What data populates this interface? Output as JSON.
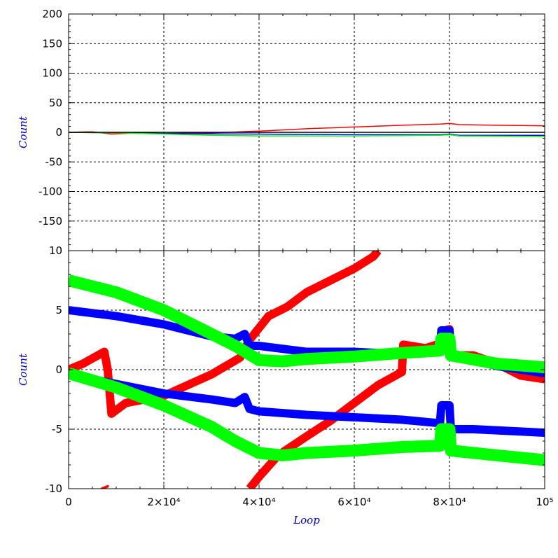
{
  "chart_data": [
    {
      "type": "line",
      "panel": "top",
      "ylabel": "Count",
      "xlabel": "",
      "xlim": [
        0,
        100000
      ],
      "ylim": [
        -200,
        200
      ],
      "y_ticks": [
        {
          "value": 200,
          "label": "200"
        },
        {
          "value": 150,
          "label": "150"
        },
        {
          "value": 100,
          "label": "100"
        },
        {
          "value": 50,
          "label": "50"
        },
        {
          "value": 0,
          "label": "0"
        },
        {
          "value": -50,
          "label": "-50"
        },
        {
          "value": -100,
          "label": "-100"
        },
        {
          "value": -150,
          "label": "-150"
        }
      ],
      "grid": true,
      "series": [
        {
          "color": "#ff0000",
          "x": [
            0,
            5000,
            9000,
            15000,
            20000,
            30000,
            40000,
            50000,
            60000,
            70000,
            78000,
            80000,
            82000,
            90000,
            100000
          ],
          "y": [
            0,
            1,
            -3,
            -1,
            -2,
            -1,
            2,
            6,
            9,
            12,
            14,
            15,
            13,
            12,
            11
          ]
        },
        {
          "color": "#0000ff",
          "x": [
            0,
            10000,
            20000,
            40000,
            60000,
            78000,
            80000,
            82000,
            100000
          ],
          "y": [
            0,
            -1,
            -2,
            -3,
            -4,
            -4,
            -3,
            -5,
            -5
          ]
        },
        {
          "color": "#00ff00",
          "x": [
            0,
            10000,
            20000,
            30000,
            40000,
            60000,
            78000,
            80000,
            82000,
            100000
          ],
          "y": [
            0,
            -1,
            -3,
            -5,
            -6,
            -6,
            -5,
            -4,
            -6,
            -7
          ]
        },
        {
          "color": "#000000",
          "x": [
            0,
            100000
          ],
          "y": [
            0,
            0
          ]
        }
      ]
    },
    {
      "type": "line",
      "panel": "bottom",
      "ylabel": "Count",
      "xlabel": "Loop",
      "xlim": [
        0,
        100000
      ],
      "ylim": [
        -10,
        10
      ],
      "x_ticks": [
        {
          "value": 0,
          "label": "0"
        },
        {
          "value": 20000,
          "label": "2×10⁴"
        },
        {
          "value": 40000,
          "label": "4×10⁴"
        },
        {
          "value": 60000,
          "label": "6×10⁴"
        },
        {
          "value": 80000,
          "label": "8×10⁴"
        },
        {
          "value": 100000,
          "label": "10⁵"
        }
      ],
      "y_ticks": [
        {
          "value": 10,
          "label": "10"
        },
        {
          "value": 5,
          "label": "5"
        },
        {
          "value": 0,
          "label": "0"
        },
        {
          "value": -5,
          "label": "-5"
        },
        {
          "value": -10,
          "label": "-10"
        }
      ],
      "grid": true,
      "series": [
        {
          "color": "#ff0000",
          "band": 0.35,
          "x": [
            0,
            3000,
            7500,
            8200,
            9000,
            12000,
            20000,
            30000,
            33000,
            36000,
            38000,
            42000,
            46000,
            50000,
            55000,
            60000,
            64000,
            65000
          ],
          "y": [
            0,
            0.5,
            1.5,
            0,
            -3.7,
            -2.8,
            -2.2,
            -0.4,
            0.3,
            1.0,
            2.5,
            4.5,
            5.3,
            6.5,
            7.5,
            8.5,
            9.5,
            10
          ]
        },
        {
          "color": "#ff0000",
          "band": 0.35,
          "x": [
            7500,
            7700
          ],
          "y": [
            -9.8,
            -10
          ]
        },
        {
          "color": "#ff0000",
          "band": 0.35,
          "x": [
            38000,
            40000,
            44000,
            50000,
            55000,
            60000,
            65000,
            70000,
            70300,
            75000,
            78000,
            78300,
            80000,
            80300,
            85000,
            90000,
            95000,
            100000
          ],
          "y": [
            -10,
            -9,
            -7.2,
            -5.6,
            -4.3,
            -2.8,
            -1.3,
            -0.2,
            2.1,
            1.8,
            2.2,
            3.2,
            3.4,
            1.2,
            1.2,
            0.5,
            -0.5,
            -0.8
          ]
        },
        {
          "color": "#0000ff",
          "band": 0.35,
          "x": [
            0,
            10000,
            20000,
            30000,
            35000,
            37000,
            38000,
            40000,
            50000,
            60000,
            70000,
            78000,
            78300,
            80000,
            80300,
            85000,
            90000,
            100000
          ],
          "y": [
            5,
            4.5,
            3.8,
            2.8,
            2.6,
            3.0,
            2.0,
            2.0,
            1.5,
            1.5,
            1.3,
            1.5,
            3.3,
            3.3,
            1.2,
            0.8,
            0.3,
            -0.3
          ]
        },
        {
          "color": "#0000ff",
          "band": 0.35,
          "x": [
            0,
            10000,
            20000,
            30000,
            35000,
            37000,
            38000,
            40000,
            50000,
            60000,
            70000,
            78000,
            78300,
            80000,
            80300,
            85000,
            90000,
            100000
          ],
          "y": [
            -0.4,
            -1.2,
            -2.0,
            -2.5,
            -2.8,
            -2.3,
            -3.3,
            -3.5,
            -3.8,
            -4.0,
            -4.2,
            -4.5,
            -3.0,
            -3.0,
            -5.0,
            -5.0,
            -5.1,
            -5.3
          ]
        },
        {
          "color": "#00ff00",
          "band": 0.5,
          "x": [
            0,
            10000,
            20000,
            30000,
            35000,
            40000,
            45000,
            50000,
            60000,
            70000,
            78000,
            78300,
            80000,
            80300,
            90000,
            100000
          ],
          "y": [
            7.5,
            6.5,
            5.0,
            3.0,
            2.0,
            0.8,
            0.7,
            0.9,
            1.1,
            1.4,
            1.6,
            2.6,
            2.6,
            1.2,
            0.5,
            0.2
          ]
        },
        {
          "color": "#00ff00",
          "band": 0.5,
          "x": [
            0,
            10000,
            20000,
            30000,
            35000,
            40000,
            45000,
            50000,
            60000,
            70000,
            78000,
            78300,
            80000,
            80300,
            90000,
            100000
          ],
          "y": [
            -0.3,
            -1.5,
            -3.0,
            -4.8,
            -6.0,
            -7.0,
            -7.2,
            -7.0,
            -6.8,
            -6.5,
            -6.4,
            -5.0,
            -5.0,
            -6.8,
            -7.2,
            -7.6
          ]
        }
      ]
    }
  ]
}
